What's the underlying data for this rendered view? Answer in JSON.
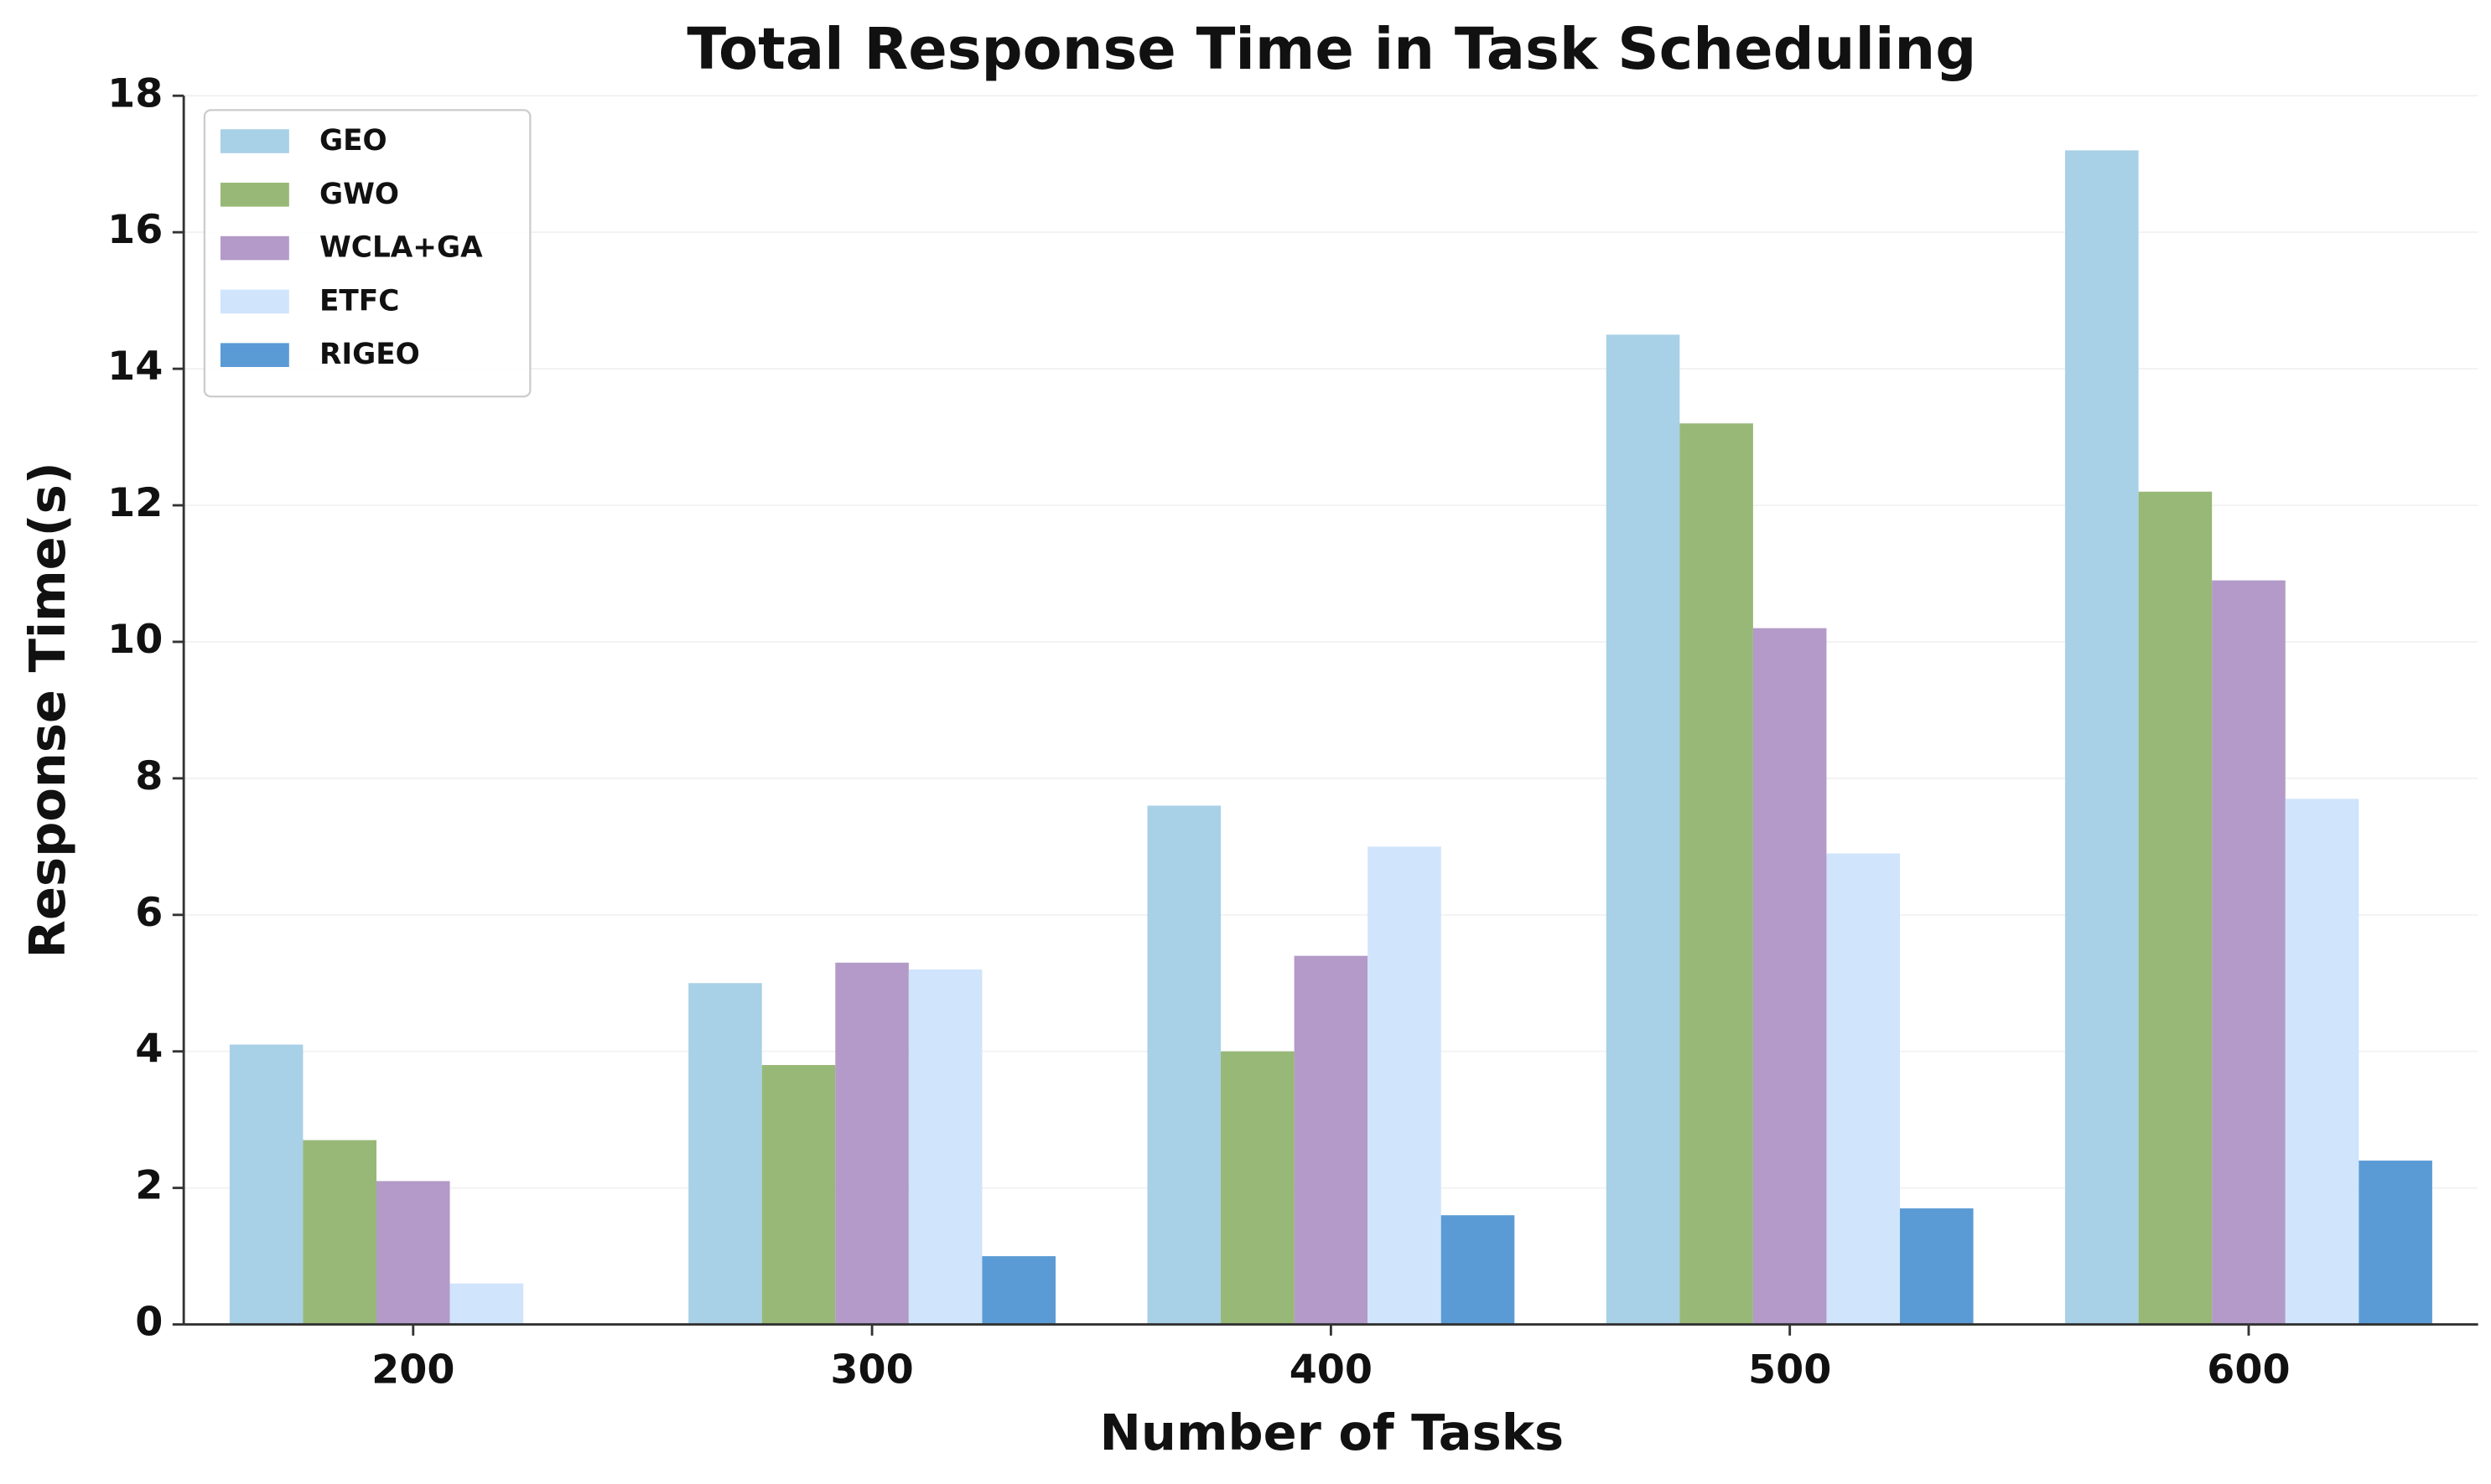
{
  "chart_data": {
    "type": "bar",
    "title": "Total Response Time in Task Scheduling",
    "x_label": "Number of Tasks",
    "y_label": "Response Time(s)",
    "categories": [
      "200",
      "300",
      "400",
      "500",
      "600"
    ],
    "series": [
      {
        "name": "GEO",
        "color": "#a8d0e6",
        "values": [
          4.1,
          5.0,
          7.6,
          14.5,
          17.2
        ]
      },
      {
        "name": "GWO",
        "color": "#98b877",
        "values": [
          2.7,
          3.8,
          4.0,
          13.2,
          12.2
        ]
      },
      {
        "name": "WCLA+GA",
        "color": "#b39ac8",
        "values": [
          2.1,
          5.3,
          5.4,
          10.2,
          10.9
        ]
      },
      {
        "name": "ETFC",
        "color": "#d0e4fb",
        "values": [
          0.6,
          5.2,
          7.0,
          6.9,
          7.7
        ]
      },
      {
        "name": "RIGEO",
        "color": "#5b9bd5",
        "values": [
          null,
          1.0,
          1.6,
          1.7,
          2.4
        ]
      }
    ],
    "ylim": [
      0,
      18
    ],
    "yticks": [
      0,
      2,
      4,
      6,
      8,
      10,
      12,
      14,
      16,
      18
    ],
    "grid": true,
    "legend": "upper left"
  }
}
